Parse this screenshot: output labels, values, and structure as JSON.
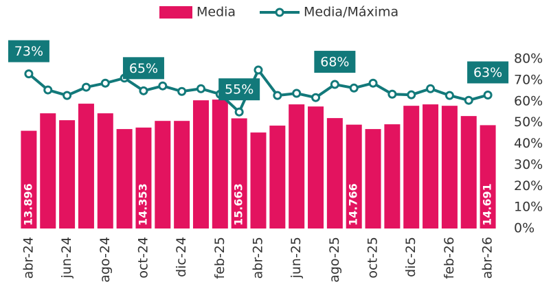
{
  "chart_data": {
    "type": "bar_line",
    "categories": [
      "abr-24",
      null,
      "jun-24",
      null,
      "ago-24",
      null,
      "oct-24",
      null,
      "dic-24",
      null,
      "feb-25",
      null,
      "abr-25",
      null,
      "jun-25",
      null,
      "ago-25",
      null,
      "oct-25",
      null,
      "dic-25",
      null,
      "feb-26",
      null,
      "abr-26"
    ],
    "series": [
      {
        "name": "Media",
        "type": "bar",
        "color": "#e3135f",
        "values": [
          13896,
          16380,
          15400,
          17750,
          16380,
          14140,
          14353,
          15300,
          15300,
          18230,
          18330,
          15663,
          13650,
          14630,
          17650,
          17350,
          15700,
          14766,
          14140,
          14820,
          17450,
          17650,
          17450,
          15990,
          14691
        ],
        "value_labels": [
          "13.896",
          null,
          null,
          null,
          null,
          null,
          "14.353",
          null,
          null,
          null,
          null,
          "15.663",
          null,
          null,
          null,
          null,
          null,
          "14.766",
          null,
          null,
          null,
          null,
          null,
          null,
          "14.691"
        ]
      },
      {
        "name": "Media/Máxima",
        "type": "line",
        "axis": "y2",
        "color": "#12797a",
        "values": [
          73,
          65.4,
          62.8,
          66.7,
          68.6,
          71,
          65,
          67.3,
          64.7,
          66,
          63.4,
          55,
          74.8,
          62.8,
          63.8,
          61.8,
          68,
          66.3,
          68.6,
          63.4,
          63.1,
          66,
          62.8,
          60.5,
          63
        ],
        "value_labels": [
          "73%",
          null,
          null,
          null,
          null,
          null,
          "65%",
          null,
          null,
          null,
          null,
          "55%",
          null,
          null,
          null,
          null,
          "68%",
          null,
          null,
          null,
          null,
          null,
          null,
          null,
          "63%"
        ]
      }
    ],
    "ylim": [
      0,
      24100
    ],
    "y2lim": [
      0,
      80
    ],
    "y2ticks": [
      {
        "value": 0,
        "label": "0%"
      },
      {
        "value": 10,
        "label": "10%"
      },
      {
        "value": 20,
        "label": "20%"
      },
      {
        "value": 30,
        "label": "30%"
      },
      {
        "value": 40,
        "label": "40%"
      },
      {
        "value": 50,
        "label": "50%"
      },
      {
        "value": 60,
        "label": "60%"
      },
      {
        "value": 70,
        "label": "70%"
      },
      {
        "value": 80,
        "label": "80%"
      }
    ]
  }
}
